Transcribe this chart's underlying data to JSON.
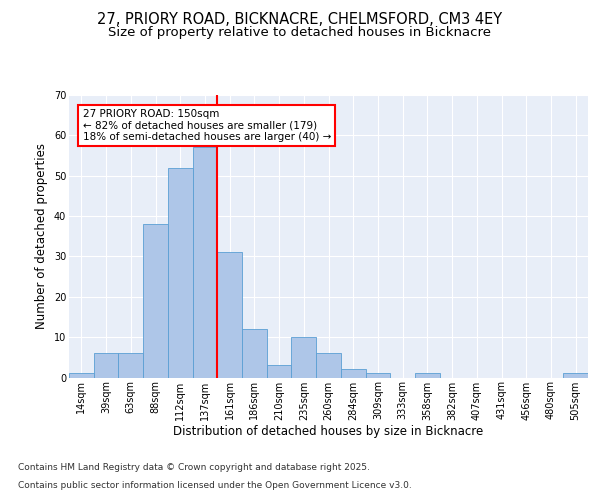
{
  "title1": "27, PRIORY ROAD, BICKNACRE, CHELMSFORD, CM3 4EY",
  "title2": "Size of property relative to detached houses in Bicknacre",
  "xlabel": "Distribution of detached houses by size in Bicknacre",
  "ylabel": "Number of detached properties",
  "categories": [
    "14sqm",
    "39sqm",
    "63sqm",
    "88sqm",
    "112sqm",
    "137sqm",
    "161sqm",
    "186sqm",
    "210sqm",
    "235sqm",
    "260sqm",
    "284sqm",
    "309sqm",
    "333sqm",
    "358sqm",
    "382sqm",
    "407sqm",
    "431sqm",
    "456sqm",
    "480sqm",
    "505sqm"
  ],
  "bar_heights": [
    1,
    6,
    6,
    38,
    52,
    57,
    31,
    12,
    3,
    10,
    6,
    2,
    1,
    0,
    1,
    0,
    0,
    0,
    0,
    0,
    1
  ],
  "bar_color": "#aec6e8",
  "bar_edge_color": "#5a9fd4",
  "vline_x": 6,
  "vline_color": "red",
  "annotation_text": "27 PRIORY ROAD: 150sqm\n← 82% of detached houses are smaller (179)\n18% of semi-detached houses are larger (40) →",
  "annotation_box_color": "white",
  "annotation_box_edge": "red",
  "ylim": [
    0,
    70
  ],
  "yticks": [
    0,
    10,
    20,
    30,
    40,
    50,
    60,
    70
  ],
  "background_color": "#e8eef8",
  "grid_color": "white",
  "footer1": "Contains HM Land Registry data © Crown copyright and database right 2025.",
  "footer2": "Contains public sector information licensed under the Open Government Licence v3.0.",
  "title_fontsize": 10.5,
  "subtitle_fontsize": 9.5,
  "axis_label_fontsize": 8.5,
  "tick_fontsize": 7,
  "annotation_fontsize": 7.5,
  "footer_fontsize": 6.5
}
